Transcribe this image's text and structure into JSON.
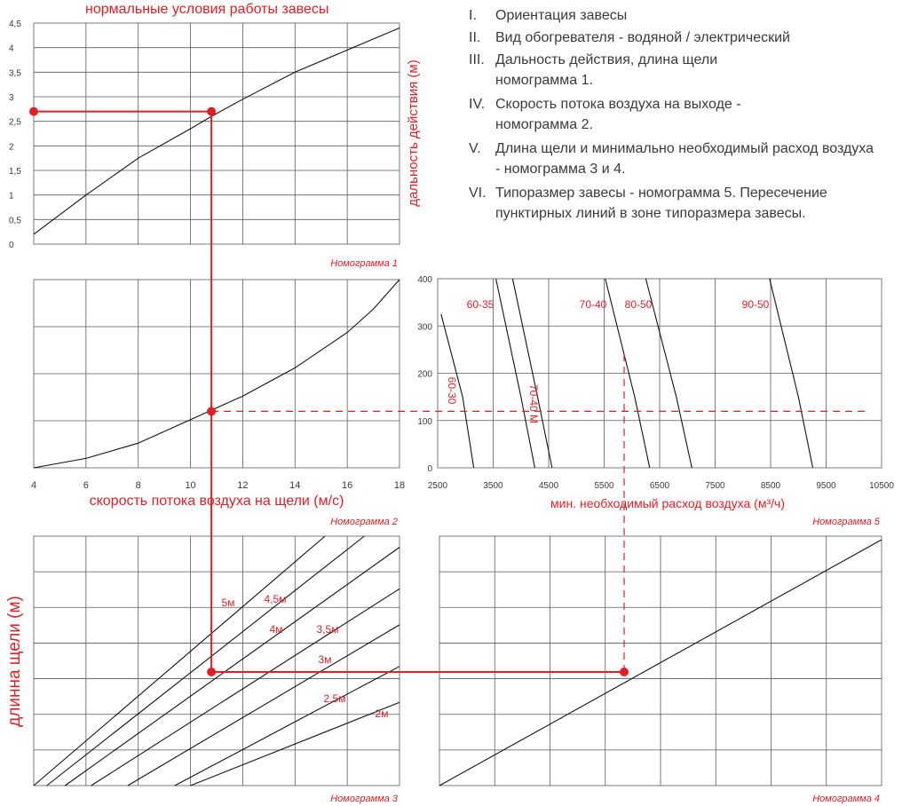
{
  "header": {
    "title": "нормальные условия работы завесы"
  },
  "steps": [
    {
      "num": "I.",
      "text": "Ориентация завесы"
    },
    {
      "num": "II.",
      "text": "Вид обогревателя - водяной / электрический"
    },
    {
      "num": "III.",
      "text": "Дальность действия, длина щели номограмма 1."
    },
    {
      "num": "IV.",
      "text": "Скорость потока воздуха на выходе - номограмма 2."
    },
    {
      "num": "V.",
      "text": "Длина щели и минимально необходимый расход воздуха - номограмма 3 и 4."
    },
    {
      "num": "VI.",
      "text": "Типоразмер завесы - номограмма 5. Пересечение пунктирных линий в зоне типоразмера завесы."
    }
  ],
  "colors": {
    "accent": "#e31e24",
    "grid": "#5a5a5a",
    "text": "#3a3a3a",
    "curve": "#111111"
  },
  "chart_data": [
    {
      "id": "nomogram-1",
      "type": "line",
      "caption": "Номограмма 1",
      "title": "нормальные условия работы завесы",
      "ylabel": "дальность действия (м)",
      "xlabel": "",
      "ylim": [
        0,
        4.5
      ],
      "yticks": [
        "0",
        "0,5",
        "1",
        "1,5",
        "2",
        "2,5",
        "3",
        "3,5",
        "4",
        "4,5"
      ],
      "grid": true,
      "series": [
        {
          "x": [
            4,
            6,
            8,
            10,
            10.8,
            12,
            14,
            16,
            18
          ],
          "y": [
            0.2,
            1.0,
            1.75,
            2.35,
            2.6,
            2.95,
            3.5,
            3.95,
            4.4
          ]
        }
      ],
      "operating_point": {
        "x": 10.8,
        "y": 2.7
      }
    },
    {
      "id": "nomogram-2",
      "type": "line",
      "caption": "Номограмма 2",
      "xlabel": "скорость потока воздуха на щели (м/с)",
      "xlim": [
        4,
        18
      ],
      "xticks": [
        "4",
        "6",
        "8",
        "10",
        "12",
        "14",
        "16",
        "18"
      ],
      "grid": true,
      "series": [
        {
          "x": [
            4,
            6,
            8,
            10,
            10.8,
            12,
            14,
            16,
            17,
            18
          ],
          "y": [
            0,
            0.08,
            0.21,
            0.41,
            0.49,
            0.61,
            0.85,
            1.15,
            1.35,
            1.6
          ]
        }
      ],
      "operating_point": {
        "x": 10.8,
        "y": 0.48
      }
    },
    {
      "id": "nomogram-3",
      "type": "line",
      "caption": "Номограмма 3",
      "ylabel": "длинна щели (м)",
      "grid": true,
      "series": [
        {
          "name": "5м",
          "x": [
            4,
            18
          ],
          "y": [
            0,
            1.13
          ]
        },
        {
          "name": "4,5м",
          "x": [
            4.5,
            18
          ],
          "y": [
            0,
            1.0
          ]
        },
        {
          "name": "4м",
          "x": [
            5.2,
            18
          ],
          "y": [
            0,
            0.86
          ]
        },
        {
          "name": "3,5м",
          "x": [
            6.2,
            18
          ],
          "y": [
            0,
            0.71
          ]
        },
        {
          "name": "3м",
          "x": [
            7.6,
            18
          ],
          "y": [
            0,
            0.58
          ]
        },
        {
          "name": "2,5м",
          "x": [
            9.4,
            18
          ],
          "y": [
            0,
            0.43
          ]
        },
        {
          "name": "2м",
          "x": [
            10,
            18
          ],
          "y": [
            0,
            0.3
          ]
        }
      ],
      "operating_point": {
        "x": 10.8,
        "y": 0.41
      }
    },
    {
      "id": "nomogram-4",
      "type": "line",
      "caption": "Номограмма 4",
      "grid": true,
      "series": [
        {
          "x": [
            0,
            1
          ],
          "y": [
            0,
            1
          ]
        }
      ],
      "operating_point": {
        "x": 0.42,
        "y": 0.41
      }
    },
    {
      "id": "nomogram-5",
      "type": "line",
      "caption": "Номограмма 5",
      "xlabel": "мин. необходимый расход воздуха (м³/ч)",
      "xlim": [
        2500,
        10500
      ],
      "ylim": [
        0,
        400
      ],
      "xticks": [
        "2500",
        "3500",
        "4500",
        "5500",
        "6500",
        "7500",
        "8500",
        "9500",
        "10500"
      ],
      "yticks": [
        "0",
        "100",
        "200",
        "300",
        "400"
      ],
      "grid": true,
      "series": [
        {
          "name": "60-30",
          "x": [
            2560,
            2950,
            3150
          ],
          "y": [
            325,
            150,
            0
          ]
        },
        {
          "name": "60-35",
          "x": [
            3550,
            4000,
            4250
          ],
          "y": [
            400,
            150,
            0
          ]
        },
        {
          "name": "70-40 М",
          "x": [
            3850,
            4300,
            4560
          ],
          "y": [
            400,
            150,
            0
          ]
        },
        {
          "name": "70-40",
          "x": [
            5520,
            6050,
            6320
          ],
          "y": [
            400,
            150,
            0
          ]
        },
        {
          "name": "80-50",
          "x": [
            6250,
            6800,
            7080
          ],
          "y": [
            400,
            150,
            0
          ]
        },
        {
          "name": "90-50",
          "x": [
            8480,
            9000,
            9260
          ],
          "y": [
            400,
            150,
            0
          ]
        }
      ],
      "operating_point": {
        "x": 5900,
        "y": 120
      }
    }
  ]
}
